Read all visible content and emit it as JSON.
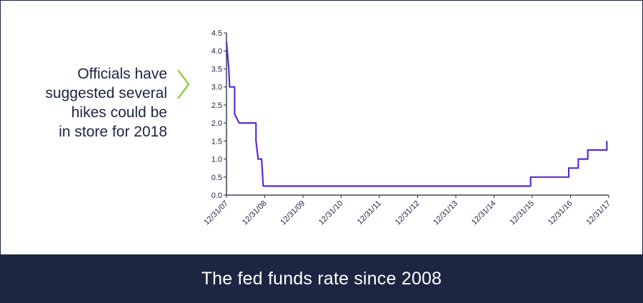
{
  "callout": {
    "lines": [
      "Officials have",
      "suggested several",
      "hikes could be",
      "in store for 2018"
    ]
  },
  "footer": {
    "title": "The fed funds rate since 2008"
  },
  "colors": {
    "line": "#5b2bd1",
    "axis": "#1c2541",
    "chevron": "#8cc63f",
    "footer_bg": "#1c2541"
  },
  "chart_data": {
    "type": "line",
    "title": "",
    "xlabel": "",
    "ylabel": "",
    "ylim": [
      0,
      4.5
    ],
    "xlim": [
      "2007-12-31",
      "2017-12-31"
    ],
    "yticks": [
      "0.0",
      "0.5",
      "1.0",
      "1.5",
      "2.0",
      "2.5",
      "3.0",
      "3.5",
      "4.0",
      "4.5"
    ],
    "xticks": [
      {
        "label": "12/31/07",
        "date": "2007-12-31"
      },
      {
        "label": "12/31/08",
        "date": "2008-12-31"
      },
      {
        "label": "12/31/09",
        "date": "2009-12-31"
      },
      {
        "label": "12/31/10",
        "date": "2010-12-31"
      },
      {
        "label": "12/31/11",
        "date": "2011-12-31"
      },
      {
        "label": "12/31/12",
        "date": "2012-12-31"
      },
      {
        "label": "12/31/13",
        "date": "2013-12-31"
      },
      {
        "label": "12/31/14",
        "date": "2014-12-31"
      },
      {
        "label": "12/31/15",
        "date": "2015-12-31"
      },
      {
        "label": "12/31/16",
        "date": "2016-12-31"
      },
      {
        "label": "12/31/17",
        "date": "2017-12-31"
      }
    ],
    "grid": false,
    "series": [
      {
        "points": [
          [
            "2007-12-31",
            4.25
          ],
          [
            "2008-01-22",
            3.5
          ],
          [
            "2008-01-30",
            3.0
          ],
          [
            "2008-03-18",
            3.0
          ],
          [
            "2008-03-18",
            2.25
          ],
          [
            "2008-04-30",
            2.0
          ],
          [
            "2008-10-08",
            2.0
          ],
          [
            "2008-10-08",
            1.5
          ],
          [
            "2008-10-29",
            1.0
          ],
          [
            "2008-12-01",
            1.0
          ],
          [
            "2008-12-16",
            0.25
          ],
          [
            "2015-12-16",
            0.25
          ],
          [
            "2015-12-16",
            0.5
          ],
          [
            "2016-12-14",
            0.5
          ],
          [
            "2016-12-14",
            0.75
          ],
          [
            "2017-03-15",
            0.75
          ],
          [
            "2017-03-15",
            1.0
          ],
          [
            "2017-06-14",
            1.0
          ],
          [
            "2017-06-14",
            1.25
          ],
          [
            "2017-12-13",
            1.25
          ],
          [
            "2017-12-13",
            1.5
          ]
        ]
      }
    ]
  }
}
